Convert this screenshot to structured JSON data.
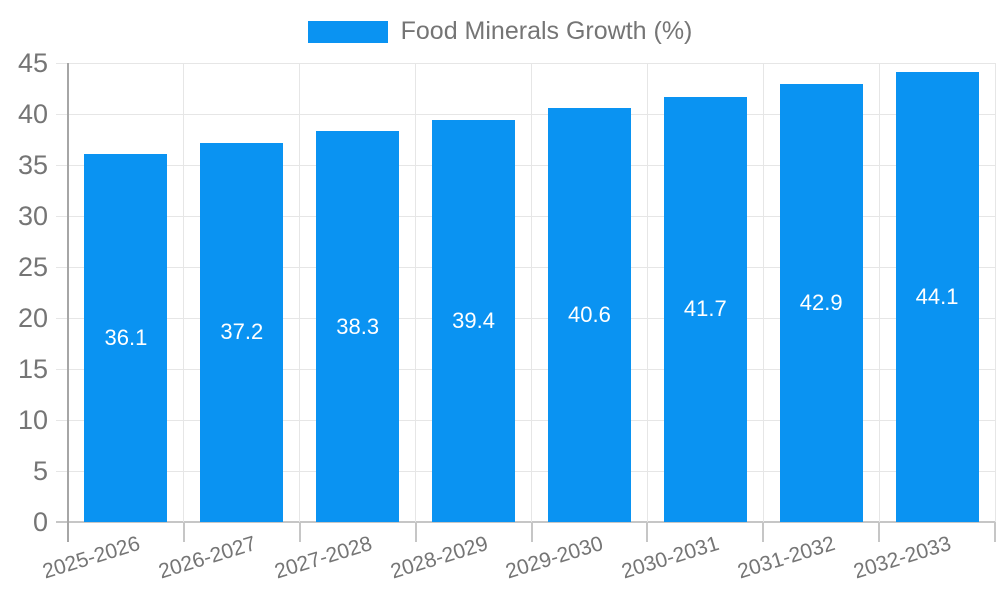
{
  "chart_data": {
    "type": "bar",
    "title": "",
    "legend_label": "Food Minerals Growth (%)",
    "categories": [
      "2025-2026",
      "2026-2027",
      "2027-2028",
      "2028-2029",
      "2029-2030",
      "2030-2031",
      "2031-2032",
      "2032-2033"
    ],
    "values": [
      36.1,
      37.2,
      38.3,
      39.4,
      40.6,
      41.7,
      42.9,
      44.1
    ],
    "value_labels": [
      "36.1",
      "37.2",
      "38.3",
      "39.4",
      "40.6",
      "41.7",
      "42.9",
      "44.1"
    ],
    "xlabel": "",
    "ylabel": "",
    "ylim": [
      0,
      45
    ],
    "yticks": [
      0,
      5,
      10,
      15,
      20,
      25,
      30,
      35,
      40,
      45
    ],
    "grid": true,
    "legend_position": "top-center",
    "x_label_rotation_deg": -17,
    "colors": {
      "bar": "#0A93F2",
      "value_label": "#FFFFFF",
      "axis_text": "#757575",
      "grid_line": "#E6E6E6",
      "axis_line": "#A6A6A6",
      "tick_line": "#C6C6C6",
      "background": "#FFFFFF"
    }
  }
}
